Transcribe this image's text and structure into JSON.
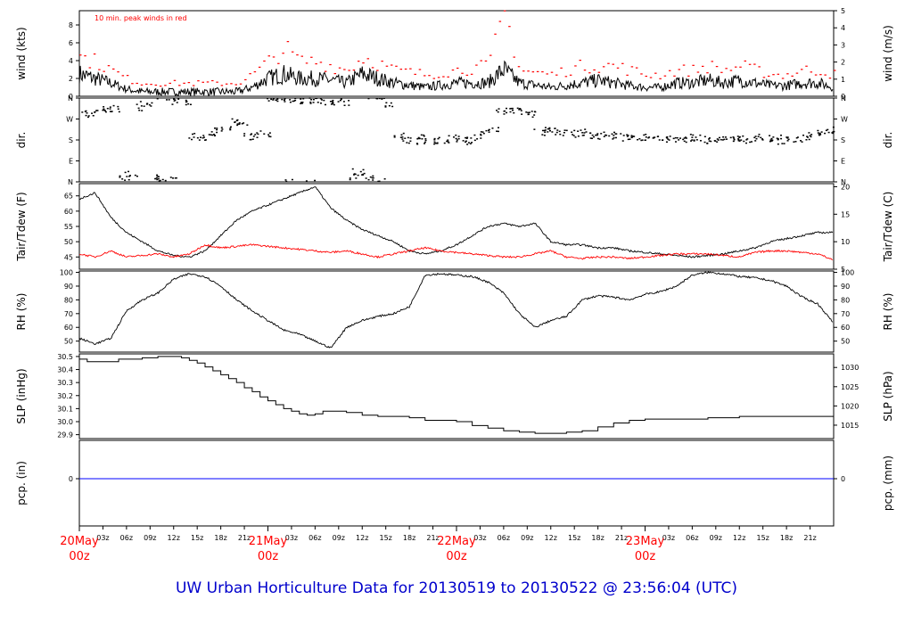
{
  "footer": {
    "title": "UW Urban Horticulture Data for 20130519  to  20130522 @ 23:56:04  (UTC)"
  },
  "colors": {
    "main": "#000000",
    "peak": "#ff0000",
    "dew": "#ff0000",
    "precip": "#0000ff",
    "day_label": "#ff0000",
    "footer": "#0000cc"
  },
  "chart_data": [
    {
      "id": "wind",
      "type": "line",
      "ylabel": "wind (kts)",
      "ylabel_right": "wind (m/s)",
      "ylim": [
        0,
        9.6
      ],
      "yticks": [
        0,
        2,
        4,
        6,
        8
      ],
      "ylim_right": [
        0,
        5
      ],
      "yticks_right": [
        0,
        1,
        2,
        3,
        4,
        5
      ],
      "annotation": "10 min. peak winds in red",
      "series": [
        {
          "name": "wind",
          "color": "#000000",
          "style": "line",
          "x": [
            0,
            2,
            4,
            6,
            8,
            12,
            16,
            20,
            22,
            24,
            26,
            28,
            30,
            32,
            34,
            36,
            40,
            44,
            48,
            52,
            54,
            56,
            60,
            64,
            66,
            68,
            70,
            72,
            74,
            76,
            78,
            80,
            82,
            84,
            86,
            88,
            90,
            92,
            94,
            96
          ],
          "y": [
            2.5,
            2.0,
            1.5,
            0.8,
            0.5,
            0.5,
            0.5,
            0.5,
            1.0,
            2.0,
            2.5,
            2.0,
            2.0,
            1.8,
            1.5,
            2.5,
            1.5,
            1.0,
            1.5,
            1.5,
            3.0,
            1.5,
            1.0,
            1.5,
            1.8,
            1.5,
            1.2,
            1.0,
            1.0,
            1.5,
            1.5,
            1.8,
            1.5,
            1.8,
            1.5,
            1.2,
            1.2,
            1.5,
            1.5,
            1.0
          ]
        },
        {
          "name": "10 min. peak winds",
          "color": "#ff0000",
          "style": "dots",
          "x": [
            0,
            2,
            4,
            6,
            8,
            12,
            16,
            20,
            22,
            24,
            26,
            28,
            30,
            32,
            34,
            36,
            40,
            44,
            48,
            52,
            54,
            56,
            60,
            64,
            66,
            68,
            70,
            72,
            74,
            76,
            78,
            80,
            82,
            84,
            86,
            88,
            90,
            92,
            94,
            96
          ],
          "y": [
            4.5,
            4.0,
            3.0,
            2.0,
            1.5,
            1.5,
            1.5,
            1.5,
            2.5,
            4.0,
            5.5,
            4.0,
            4.0,
            3.5,
            3.0,
            4.5,
            3.0,
            2.5,
            3.0,
            3.5,
            9.6,
            3.0,
            2.5,
            3.5,
            3.5,
            3.5,
            3.0,
            2.5,
            2.5,
            3.0,
            3.0,
            3.5,
            3.0,
            3.5,
            3.0,
            2.5,
            2.5,
            3.0,
            3.0,
            2.5
          ]
        }
      ]
    },
    {
      "id": "dir",
      "type": "scatter",
      "ylabel": "dir.",
      "ylabel_right": "dir.",
      "ylim": [
        0,
        360
      ],
      "ytick_values": [
        0,
        90,
        180,
        270,
        360
      ],
      "ytick_labels": [
        "N",
        "E",
        "S",
        "W",
        "N"
      ],
      "series": [
        {
          "name": "wind direction",
          "color": "#000000",
          "style": "dots",
          "x": [
            0,
            1,
            2,
            3,
            4,
            5,
            6,
            7,
            8,
            9,
            10,
            11,
            12,
            13,
            14,
            15,
            16,
            17,
            18,
            19,
            20,
            21,
            22,
            23,
            24,
            25,
            26,
            27,
            28,
            29,
            30,
            31,
            32,
            33,
            34,
            35,
            36,
            37,
            38,
            39,
            40,
            41,
            42,
            43,
            44,
            45,
            46,
            47,
            48,
            49,
            50,
            51,
            52,
            53,
            54,
            55,
            56,
            57,
            58,
            59,
            60,
            61,
            62,
            63,
            64,
            65,
            66,
            67,
            68,
            69,
            70,
            71,
            72,
            73,
            74,
            75,
            76,
            77,
            78,
            79,
            80,
            81,
            82,
            83,
            84,
            85,
            86,
            87,
            88,
            89,
            90,
            91,
            92,
            93,
            94,
            95,
            96
          ],
          "y": [
            290,
            295,
            300,
            310,
            315,
            20,
            30,
            320,
            330,
            15,
            10,
            5,
            340,
            335,
            195,
            190,
            200,
            215,
            225,
            260,
            240,
            195,
            200,
            205,
            345,
            350,
            355,
            355,
            350,
            350,
            345,
            345,
            340,
            340,
            20,
            40,
            15,
            10,
            5,
            335,
            200,
            180,
            175,
            190,
            170,
            175,
            180,
            185,
            180,
            175,
            190,
            210,
            220,
            300,
            310,
            305,
            300,
            290,
            210,
            220,
            215,
            210,
            205,
            210,
            200,
            195,
            205,
            200,
            195,
            190,
            195,
            185,
            190,
            180,
            185,
            180,
            180,
            185,
            190,
            180,
            175,
            185,
            180,
            180,
            185,
            180,
            190,
            180,
            185,
            175,
            180,
            185,
            190,
            200,
            210,
            220,
            205
          ]
        }
      ]
    },
    {
      "id": "temp",
      "type": "line",
      "ylabel": "Tair/Tdew (F)",
      "ylabel_right": "Tair/Tdew (C)",
      "ylim": [
        41,
        69
      ],
      "yticks": [
        45,
        50,
        55,
        60,
        65
      ],
      "ylim_right": [
        5,
        20.56
      ],
      "yticks_right": [
        5,
        10,
        15,
        20
      ],
      "series": [
        {
          "name": "Tair",
          "color": "#000000",
          "x": [
            0,
            2,
            4,
            6,
            8,
            10,
            12,
            14,
            16,
            18,
            20,
            22,
            24,
            26,
            28,
            30,
            32,
            34,
            36,
            38,
            40,
            42,
            44,
            46,
            48,
            50,
            52,
            54,
            56,
            58,
            60,
            62,
            64,
            66,
            68,
            70,
            72,
            74,
            76,
            78,
            80,
            82,
            84,
            86,
            88,
            90,
            92,
            94,
            96
          ],
          "y": [
            64,
            66,
            58,
            53,
            50,
            47,
            45.5,
            45,
            47,
            52,
            57,
            60,
            62,
            64,
            66,
            68,
            61,
            57,
            54,
            52,
            50,
            47,
            46,
            47,
            49,
            52,
            55,
            56,
            55,
            56,
            50,
            49,
            49,
            48,
            48,
            47,
            46.5,
            46,
            45.5,
            45,
            45.5,
            46,
            47,
            48,
            50,
            51,
            52,
            53,
            53
          ]
        },
        {
          "name": "Tdew",
          "color": "#ff0000",
          "x": [
            0,
            2,
            4,
            6,
            8,
            10,
            12,
            14,
            16,
            18,
            20,
            22,
            24,
            26,
            28,
            30,
            32,
            34,
            36,
            38,
            40,
            42,
            44,
            46,
            48,
            50,
            52,
            54,
            56,
            58,
            60,
            62,
            64,
            66,
            68,
            70,
            72,
            74,
            76,
            78,
            80,
            82,
            84,
            86,
            88,
            90,
            92,
            94,
            96
          ],
          "y": [
            46,
            45,
            47,
            45,
            45.5,
            46,
            45,
            46,
            49,
            48,
            48.5,
            49,
            48.5,
            48,
            47.5,
            47,
            46.5,
            47,
            46,
            45,
            46,
            47,
            48,
            47,
            46.5,
            46,
            45.5,
            45,
            45,
            46,
            47,
            45,
            44.5,
            45,
            45,
            44.5,
            45,
            45.5,
            46,
            46,
            46,
            45.5,
            45,
            46.5,
            47,
            47,
            46.5,
            46,
            44
          ]
        }
      ]
    },
    {
      "id": "rh",
      "type": "line",
      "ylabel": "RH (%)",
      "ylabel_right": "RH (%)",
      "ylim": [
        42,
        101
      ],
      "yticks": [
        50,
        60,
        70,
        80,
        90,
        100
      ],
      "yticks_right": [
        50,
        60,
        70,
        80,
        90,
        100
      ],
      "series": [
        {
          "name": "RH",
          "color": "#000000",
          "x": [
            0,
            2,
            4,
            6,
            8,
            10,
            12,
            14,
            16,
            18,
            20,
            22,
            24,
            26,
            28,
            30,
            32,
            34,
            36,
            38,
            40,
            42,
            44,
            46,
            48,
            50,
            52,
            54,
            56,
            58,
            60,
            62,
            64,
            66,
            68,
            70,
            72,
            74,
            76,
            78,
            80,
            82,
            84,
            86,
            88,
            90,
            92,
            94,
            96
          ],
          "y": [
            52,
            48,
            52,
            72,
            80,
            85,
            95,
            99,
            97,
            90,
            80,
            72,
            65,
            58,
            55,
            50,
            45,
            60,
            65,
            68,
            70,
            75,
            98,
            99,
            98,
            97,
            93,
            85,
            70,
            60,
            65,
            68,
            80,
            83,
            82,
            80,
            84,
            86,
            90,
            98,
            100,
            99,
            97,
            96,
            94,
            90,
            82,
            77,
            63
          ]
        }
      ]
    },
    {
      "id": "slp",
      "type": "line",
      "ylabel": "SLP (inHg)",
      "ylabel_right": "SLP (hPa)",
      "ylim": [
        29.87,
        30.52
      ],
      "yticks": [
        29.9,
        30.0,
        30.1,
        30.2,
        30.3,
        30.4,
        30.5
      ],
      "ytick_labels": [
        "29.9",
        "30.0",
        "30.1",
        "30.2",
        "30.3",
        "30.4",
        "30.5"
      ],
      "yticks_right": [
        1015,
        1020,
        1025,
        1030
      ],
      "series": [
        {
          "name": "SLP",
          "color": "#000000",
          "style": "step",
          "x": [
            0,
            1,
            2,
            5,
            8,
            10,
            12,
            13,
            14,
            15,
            16,
            17,
            18,
            19,
            20,
            21,
            22,
            23,
            24,
            25,
            26,
            27,
            28,
            29,
            30,
            31,
            32,
            33,
            34,
            36,
            38,
            40,
            42,
            44,
            46,
            48,
            50,
            52,
            54,
            56,
            58,
            60,
            62,
            64,
            66,
            68,
            70,
            72,
            74,
            76,
            78,
            80,
            82,
            84,
            86,
            88,
            90,
            92,
            94,
            96
          ],
          "y": [
            30.48,
            30.46,
            30.46,
            30.48,
            30.49,
            30.5,
            30.5,
            30.49,
            30.47,
            30.45,
            30.42,
            30.39,
            30.36,
            30.33,
            30.3,
            30.26,
            30.23,
            30.19,
            30.16,
            30.13,
            30.1,
            30.08,
            30.06,
            30.05,
            30.06,
            30.08,
            30.08,
            30.08,
            30.07,
            30.05,
            30.04,
            30.04,
            30.03,
            30.01,
            30.01,
            30.0,
            29.97,
            29.95,
            29.93,
            29.92,
            29.91,
            29.91,
            29.92,
            29.93,
            29.96,
            29.99,
            30.01,
            30.02,
            30.02,
            30.02,
            30.02,
            30.03,
            30.03,
            30.04,
            30.04,
            30.04,
            30.04,
            30.04,
            30.04,
            30.04
          ]
        }
      ]
    },
    {
      "id": "pcp",
      "type": "line",
      "ylabel": "pcp. (in)",
      "ylabel_right": "pcp. (mm)",
      "yticks": [
        0
      ],
      "yticks_right": [
        0
      ],
      "series": [
        {
          "name": "precip",
          "color": "#0000ff",
          "x": [
            0,
            96
          ],
          "y": [
            0,
            0
          ]
        }
      ]
    }
  ],
  "x_axis": {
    "range": [
      0,
      96
    ],
    "ticks": [
      {
        "x": 3,
        "label": "03z"
      },
      {
        "x": 6,
        "label": "06z"
      },
      {
        "x": 9,
        "label": "09z"
      },
      {
        "x": 12,
        "label": "12z"
      },
      {
        "x": 15,
        "label": "15z"
      },
      {
        "x": 18,
        "label": "18z"
      },
      {
        "x": 21,
        "label": "21z"
      },
      {
        "x": 27,
        "label": "03z"
      },
      {
        "x": 30,
        "label": "06z"
      },
      {
        "x": 33,
        "label": "09z"
      },
      {
        "x": 36,
        "label": "12z"
      },
      {
        "x": 39,
        "label": "15z"
      },
      {
        "x": 42,
        "label": "18z"
      },
      {
        "x": 45,
        "label": "21z"
      },
      {
        "x": 51,
        "label": "03z"
      },
      {
        "x": 54,
        "label": "06z"
      },
      {
        "x": 57,
        "label": "09z"
      },
      {
        "x": 60,
        "label": "12z"
      },
      {
        "x": 63,
        "label": "15z"
      },
      {
        "x": 66,
        "label": "18z"
      },
      {
        "x": 69,
        "label": "21z"
      },
      {
        "x": 75,
        "label": "03z"
      },
      {
        "x": 78,
        "label": "06z"
      },
      {
        "x": 81,
        "label": "09z"
      },
      {
        "x": 84,
        "label": "12z"
      },
      {
        "x": 87,
        "label": "15z"
      },
      {
        "x": 90,
        "label": "18z"
      },
      {
        "x": 93,
        "label": "21z"
      }
    ],
    "day_labels": [
      {
        "x": 0,
        "line1": "20May",
        "line2": "00z"
      },
      {
        "x": 24,
        "line1": "21May",
        "line2": "00z"
      },
      {
        "x": 48,
        "line1": "22May",
        "line2": "00z"
      },
      {
        "x": 72,
        "line1": "23May",
        "line2": "00z"
      }
    ]
  }
}
